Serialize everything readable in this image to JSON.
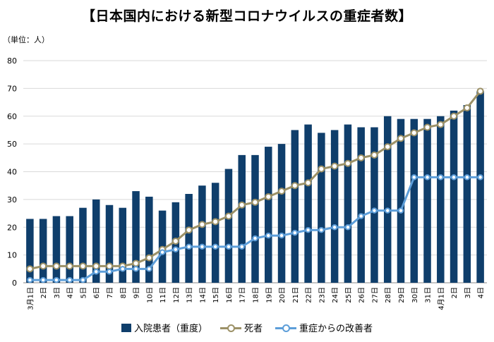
{
  "chart_data": {
    "type": "bar",
    "title": "【日本国内における新型コロナウイルスの重症者数】",
    "unit_label": "（単位：人）",
    "ylim": [
      0,
      80
    ],
    "yticks": [
      0,
      10,
      20,
      30,
      40,
      50,
      60,
      70,
      80
    ],
    "grid": true,
    "legend_position": "bottom",
    "categories": [
      "3月1日",
      "2日",
      "3日",
      "4日",
      "5日",
      "6日",
      "7日",
      "8日",
      "9日",
      "10日",
      "11日",
      "12日",
      "13日",
      "14日",
      "15日",
      "16日",
      "17日",
      "18日",
      "19日",
      "20日",
      "21日",
      "22日",
      "23日",
      "24日",
      "25日",
      "26日",
      "27日",
      "28日",
      "29日",
      "30日",
      "31日",
      "4月1日",
      "2日",
      "3日",
      "4日"
    ],
    "series": [
      {
        "name": "入院患者（重度）",
        "kind": "bar",
        "color": "#0f3e6b",
        "values": [
          23,
          23,
          24,
          24,
          27,
          30,
          28,
          27,
          33,
          31,
          26,
          29,
          32,
          35,
          36,
          41,
          46,
          46,
          49,
          50,
          55,
          57,
          54,
          55,
          57,
          56,
          56,
          60,
          59,
          59,
          59,
          60,
          62,
          64,
          69
        ]
      },
      {
        "name": "死者",
        "kind": "line",
        "color": "#9c9167",
        "values": [
          5,
          6,
          6,
          6,
          6,
          6,
          6,
          6,
          7,
          9,
          12,
          15,
          19,
          21,
          22,
          24,
          28,
          29,
          31,
          33,
          35,
          36,
          41,
          42,
          43,
          45,
          46,
          49,
          52,
          54,
          56,
          57,
          60,
          63,
          69
        ]
      },
      {
        "name": "重症からの改善者",
        "kind": "line",
        "color": "#5d9ed9",
        "values": [
          1,
          1,
          1,
          1,
          1,
          4,
          4,
          5,
          5,
          5,
          11,
          12,
          13,
          13,
          13,
          13,
          13,
          16,
          17,
          17,
          18,
          19,
          19,
          20,
          20,
          24,
          26,
          26,
          26,
          38,
          38,
          38,
          38,
          38,
          38
        ]
      }
    ]
  }
}
